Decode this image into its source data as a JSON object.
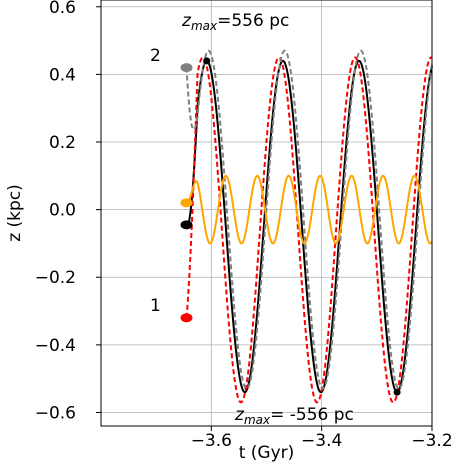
{
  "chart_data": {
    "type": "line",
    "xlabel": "t (Gyr)",
    "ylabel": "z (kpc)",
    "xlim": [
      -3.8,
      -3.2
    ],
    "ylim": [
      -0.64,
      0.62
    ],
    "xticks": [
      -3.6,
      -3.4,
      -3.2
    ],
    "xtick_labels": [
      "−3.6",
      "−3.4",
      "−3.2"
    ],
    "yticks": [
      -0.6,
      -0.4,
      -0.2,
      0.0,
      0.2,
      0.4,
      0.6
    ],
    "ytick_labels": [
      "−0.6",
      "−0.4",
      "−0.2",
      "0.0",
      "0.2",
      "0.4",
      "0.6"
    ],
    "grid": true,
    "series": [
      {
        "color": "#000000",
        "dash": "solid",
        "t0": -3.645,
        "z0": -0.045,
        "amplitude": 0.49,
        "offset": -0.05,
        "period": 0.138,
        "phase": -0.1
      },
      {
        "color": "#ff0000",
        "dash": "dashed",
        "t0": -3.645,
        "z0": -0.32,
        "amplitude": 0.51,
        "offset": -0.06,
        "period": 0.138,
        "phase": 0.22
      },
      {
        "color": "#808080",
        "dash": "dashed",
        "t0": -3.645,
        "z0": 0.42,
        "amplitude": 0.5,
        "offset": -0.03,
        "period": 0.138,
        "phase": -0.25
      },
      {
        "color": "#ffa500",
        "dash": "solid",
        "t0": -3.645,
        "z0": 0.02,
        "amplitude": 0.1,
        "offset": 0.0,
        "period": 0.057,
        "phase": 0.0
      }
    ],
    "annotations": {
      "zmax_top": {
        "z": "z",
        "sub": "max",
        "text": "=556 pc"
      },
      "zmax_bottom": {
        "z": "z",
        "sub": "max",
        "text": "= -556 pc"
      },
      "label_1": "1",
      "label_2": "2"
    }
  }
}
